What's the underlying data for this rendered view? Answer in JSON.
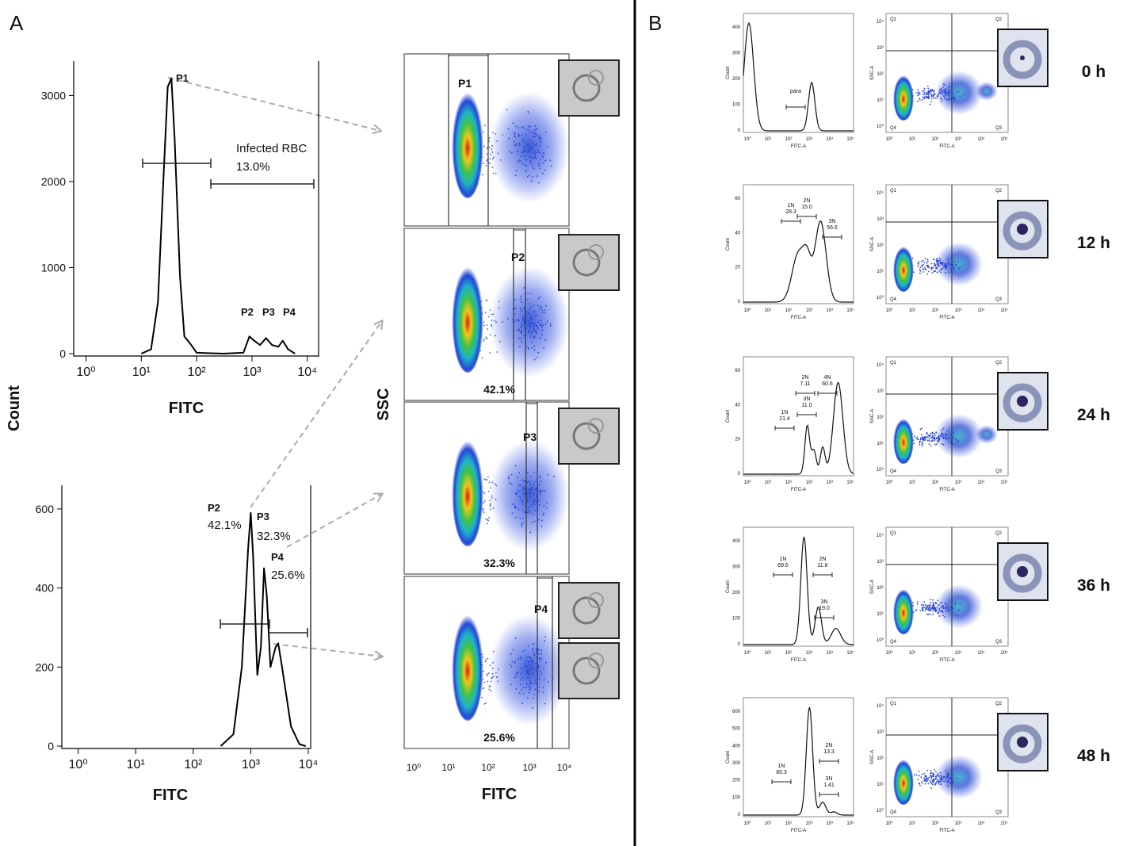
{
  "panel_labels": [
    "A",
    "B"
  ],
  "chart_data": [
    {
      "type": "line",
      "x_label": "FITC",
      "y_label": "Count",
      "xlog": true,
      "color": "#000000",
      "xlim": [
        0.6,
        16000
      ],
      "ylim": [
        0,
        3400
      ],
      "xticks": [
        {
          "value": 1,
          "label": "10⁰"
        },
        {
          "value": 10,
          "label": "10¹"
        },
        {
          "value": 100,
          "label": "10²"
        },
        {
          "value": 1000,
          "label": "10³"
        },
        {
          "value": 10000,
          "label": "10⁴"
        }
      ],
      "yticks": [
        0,
        1000,
        2000,
        3000
      ],
      "series": [
        {
          "x": [
            10,
            15,
            20,
            25,
            30,
            35,
            40,
            50,
            60,
            80,
            100,
            300,
            700,
            900,
            1100,
            1400,
            1800,
            2300,
            3000,
            3600,
            4500,
            6000
          ],
          "values": [
            0,
            50,
            600,
            2000,
            3100,
            3200,
            2500,
            900,
            200,
            100,
            10,
            0,
            10,
            200,
            150,
            100,
            180,
            100,
            80,
            150,
            50,
            0
          ]
        }
      ],
      "annotations": [
        "P1",
        "Infected RBC",
        "13.0%",
        "P2",
        "P3",
        "P4"
      ]
    },
    {
      "type": "line",
      "x_label": "FITC",
      "xlog": true,
      "color": "#000000",
      "xlim": [
        0.52,
        11000
      ],
      "ylim": [
        0,
        660
      ],
      "xticks": [
        {
          "value": 1,
          "label": "10⁰"
        },
        {
          "value": 10,
          "label": "10¹"
        },
        {
          "value": 100,
          "label": "10²"
        },
        {
          "value": 1000,
          "label": "10³"
        },
        {
          "value": 10000,
          "label": "10⁴"
        }
      ],
      "yticks": [
        0,
        200,
        400,
        600
      ],
      "series": [
        {
          "x": [
            300,
            500,
            700,
            900,
            1000,
            1100,
            1300,
            1500,
            1700,
            1900,
            2200,
            2700,
            3000,
            3500,
            5000,
            7000,
            9000
          ],
          "values": [
            0,
            30,
            200,
            500,
            590,
            480,
            180,
            250,
            450,
            380,
            200,
            250,
            260,
            200,
            50,
            5,
            0
          ]
        }
      ],
      "annotations": [
        "P2",
        "42.1%",
        "P3",
        "32.3%",
        "P4",
        "25.6%"
      ]
    }
  ],
  "dot_plots": {
    "x_label": "FITC",
    "y_label": "SSC",
    "x_ticks": [
      "10⁰",
      "10¹",
      "10²",
      "10³",
      "10⁴"
    ],
    "gates": [
      {
        "label": "P1"
      },
      {
        "label": "P2",
        "percent": "42.1%"
      },
      {
        "label": "P3",
        "percent": "32.3%"
      },
      {
        "label": "P4",
        "percent": "25.6%"
      }
    ]
  },
  "timecourse": {
    "count_label": "Count",
    "fitc_label": "FITC-A",
    "ssc_label": "SSC-A",
    "quadrants": [
      "Q1",
      "Q2",
      "Q3",
      "Q4"
    ],
    "x_ticks": [
      "10⁰",
      "10¹",
      "10²",
      "10³",
      "10⁴",
      "10⁵"
    ],
    "ssc_ticks": [
      "10⁰",
      "10¹",
      "10²",
      "10³",
      "10⁴"
    ],
    "rows": [
      {
        "time": "0 h",
        "count_ticks": [
          "0",
          "100",
          "200",
          "300",
          "400"
        ],
        "gates": [
          {
            "label": "para"
          }
        ]
      },
      {
        "time": "12 h",
        "count_ticks": [
          "0",
          "20",
          "40",
          "60"
        ],
        "gates": [
          {
            "label": "1N",
            "value": "28.3"
          },
          {
            "label": "2N",
            "value": "15.0"
          },
          {
            "label": "3N",
            "value": "56.6"
          }
        ]
      },
      {
        "time": "24 h",
        "count_ticks": [
          "0",
          "20",
          "40",
          "60"
        ],
        "gates": [
          {
            "label": "1N",
            "value": "21.4"
          },
          {
            "label": "2N",
            "value": "7.11"
          },
          {
            "label": "3N",
            "value": "11.0"
          },
          {
            "label": "4N",
            "value": "60.6"
          }
        ]
      },
      {
        "time": "36 h",
        "count_ticks": [
          "0",
          "100",
          "200",
          "300",
          "400"
        ],
        "gates": [
          {
            "label": "1N",
            "value": "69.6"
          },
          {
            "label": "2N",
            "value": "11.8"
          },
          {
            "label": "3N",
            "value": "19.0"
          }
        ]
      },
      {
        "time": "48 h",
        "count_ticks": [
          "0",
          "100",
          "200",
          "300",
          "400",
          "500",
          "600"
        ],
        "gates": [
          {
            "label": "1N",
            "value": "85.3"
          },
          {
            "label": "2N",
            "value": "13.3"
          },
          {
            "label": "3N",
            "value": "1.41"
          }
        ]
      }
    ]
  }
}
